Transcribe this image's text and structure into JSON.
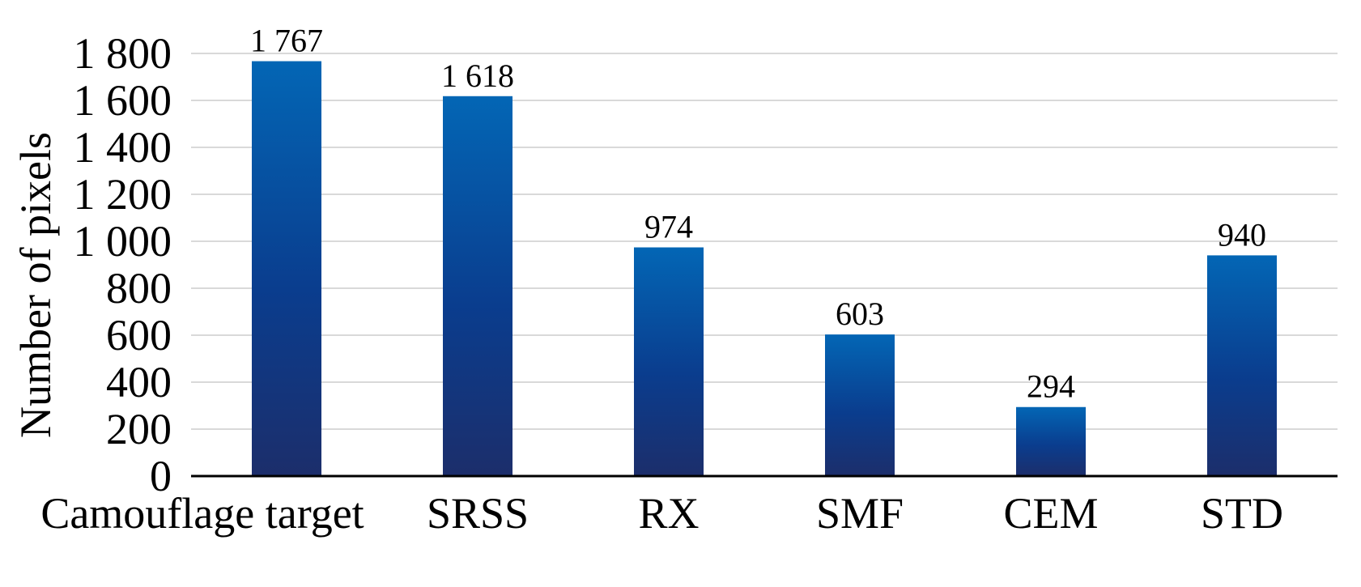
{
  "chart_data": {
    "type": "bar",
    "title": "",
    "xlabel": "",
    "ylabel": "Number of pixels",
    "categories": [
      "Camouflage target",
      "SRSS",
      "RX",
      "SMF",
      "CEM",
      "STD"
    ],
    "values": [
      1767,
      1618,
      974,
      603,
      294,
      940
    ],
    "value_labels": [
      "1 767",
      "1 618",
      "974",
      "603",
      "294",
      "940"
    ],
    "ylim": [
      0,
      1800
    ],
    "yticks": [
      0,
      200,
      400,
      600,
      800,
      1000,
      1200,
      1400,
      1600,
      1800
    ],
    "ytick_labels": [
      "0",
      "200",
      "400",
      "600",
      "800",
      "1 000",
      "1 200",
      "1 400",
      "1 600",
      "1 800"
    ],
    "grid": true,
    "legend": false,
    "colors": {
      "bar_top": "#0366b5",
      "bar_mid": "#0a3d8e",
      "bar_bottom": "#1c2e6b",
      "grid": "#d9d9d9",
      "axis": "#000000"
    }
  }
}
